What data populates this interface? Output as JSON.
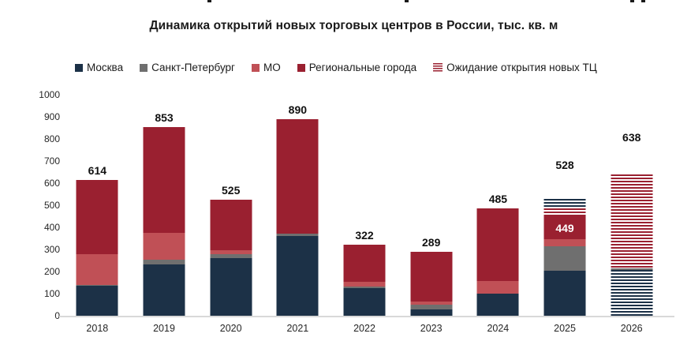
{
  "chart_data": {
    "type": "bar",
    "stacked": true,
    "title": "Динамика открытий новых торговых центров в России, тыс. кв. м",
    "categories": [
      "2018",
      "2019",
      "2020",
      "2021",
      "2022",
      "2023",
      "2024",
      "2025",
      "2026"
    ],
    "axis": {
      "y_min": 0,
      "y_max": 1000,
      "y_step": 100,
      "grid": false,
      "unit": "тыс. кв. м"
    },
    "palette": {
      "moscow": "#1c3147",
      "spb": "#6f6f6f",
      "mo": "#c05056",
      "regions": "#9a2030"
    },
    "legend_items": [
      {
        "label": "Москва",
        "key": "moscow",
        "pattern": "solid"
      },
      {
        "label": "Санкт-Петербург",
        "key": "spb",
        "pattern": "solid"
      },
      {
        "label": "МО",
        "key": "mo",
        "pattern": "solid"
      },
      {
        "label": "Региональные города",
        "key": "regions",
        "pattern": "solid"
      },
      {
        "label": "Ожидание открытия новых ТЦ",
        "key": "regions",
        "pattern": "striped"
      }
    ],
    "series": [
      {
        "name": "Москва",
        "key": "moscow",
        "pattern": "solid",
        "values": [
          135,
          232,
          262,
          360,
          125,
          30,
          100,
          202,
          0
        ]
      },
      {
        "name": "Санкт-Петербург",
        "key": "spb",
        "pattern": "solid",
        "values": [
          5,
          20,
          15,
          13,
          8,
          21,
          0,
          111,
          0
        ]
      },
      {
        "name": "МО",
        "key": "mo",
        "pattern": "solid",
        "values": [
          140,
          123,
          20,
          0,
          22,
          14,
          57,
          34,
          0
        ]
      },
      {
        "name": "Региональные города",
        "key": "regions",
        "pattern": "solid",
        "values": [
          334,
          478,
          228,
          517,
          167,
          224,
          328,
          102,
          0
        ]
      },
      {
        "name": "Ожидание открытия новых ТЦ",
        "key": "expected",
        "pattern": "striped",
        "values": [
          0,
          0,
          0,
          0,
          0,
          0,
          0,
          79,
          638
        ]
      }
    ],
    "expected_detail": {
      "2025": [
        [
          "regions",
          36
        ],
        [
          "moscow",
          43
        ]
      ],
      "2026": [
        [
          "moscow",
          206
        ],
        [
          "spb",
          9
        ],
        [
          "regions",
          423
        ]
      ]
    },
    "totals": [
      614,
      853,
      525,
      890,
      322,
      289,
      485,
      528,
      638
    ],
    "total_label_gaps": {
      "2025": 36,
      "2026": 40
    },
    "annotations": [
      {
        "year": "2025",
        "series_key": "regions",
        "text": "449",
        "color": "#ffffff"
      }
    ]
  }
}
